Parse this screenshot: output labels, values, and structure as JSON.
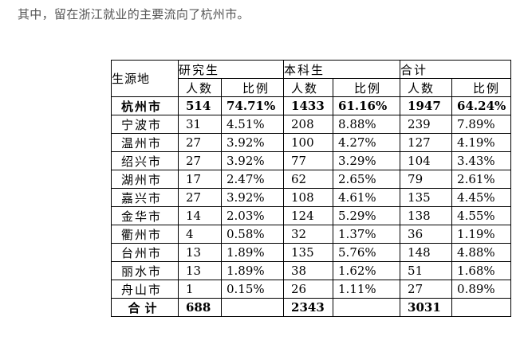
{
  "intro_text": "其中，留在浙江就业的主要流向了杭州市。",
  "table": {
    "origin_header": "生源地",
    "groups": [
      "研究生",
      "本科生",
      "合计"
    ],
    "sub_headers": {
      "count": "人数",
      "ratio": "比例"
    },
    "rows": [
      {
        "city": "杭州市",
        "grad_n": "514",
        "grad_p": "74.71%",
        "ug_n": "1433",
        "ug_p": "61.16%",
        "tot_n": "1947",
        "tot_p": "64.24%"
      },
      {
        "city": "宁波市",
        "grad_n": "31",
        "grad_p": "4.51%",
        "ug_n": "208",
        "ug_p": "8.88%",
        "tot_n": "239",
        "tot_p": "7.89%"
      },
      {
        "city": "温州市",
        "grad_n": "27",
        "grad_p": "3.92%",
        "ug_n": "100",
        "ug_p": "4.27%",
        "tot_n": "127",
        "tot_p": "4.19%"
      },
      {
        "city": "绍兴市",
        "grad_n": "27",
        "grad_p": "3.92%",
        "ug_n": "77",
        "ug_p": "3.29%",
        "tot_n": "104",
        "tot_p": "3.43%"
      },
      {
        "city": "湖州市",
        "grad_n": "17",
        "grad_p": "2.47%",
        "ug_n": "62",
        "ug_p": "2.65%",
        "tot_n": "79",
        "tot_p": "2.61%"
      },
      {
        "city": "嘉兴市",
        "grad_n": "27",
        "grad_p": "3.92%",
        "ug_n": "108",
        "ug_p": "4.61%",
        "tot_n": "135",
        "tot_p": "4.45%"
      },
      {
        "city": "金华市",
        "grad_n": "14",
        "grad_p": "2.03%",
        "ug_n": "124",
        "ug_p": "5.29%",
        "tot_n": "138",
        "tot_p": "4.55%"
      },
      {
        "city": "衢州市",
        "grad_n": "4",
        "grad_p": "0.58%",
        "ug_n": "32",
        "ug_p": "1.37%",
        "tot_n": "36",
        "tot_p": "1.19%"
      },
      {
        "city": "台州市",
        "grad_n": "13",
        "grad_p": "1.89%",
        "ug_n": "135",
        "ug_p": "5.76%",
        "tot_n": "148",
        "tot_p": "4.88%"
      },
      {
        "city": "丽水市",
        "grad_n": "13",
        "grad_p": "1.89%",
        "ug_n": "38",
        "ug_p": "1.62%",
        "tot_n": "51",
        "tot_p": "1.68%"
      },
      {
        "city": "舟山市",
        "grad_n": "1",
        "grad_p": "0.15%",
        "ug_n": "26",
        "ug_p": "1.11%",
        "tot_n": "27",
        "tot_p": "0.89%"
      }
    ],
    "total_row": {
      "label": "合计",
      "grad_n": "688",
      "ug_n": "2343",
      "tot_n": "3031"
    }
  }
}
